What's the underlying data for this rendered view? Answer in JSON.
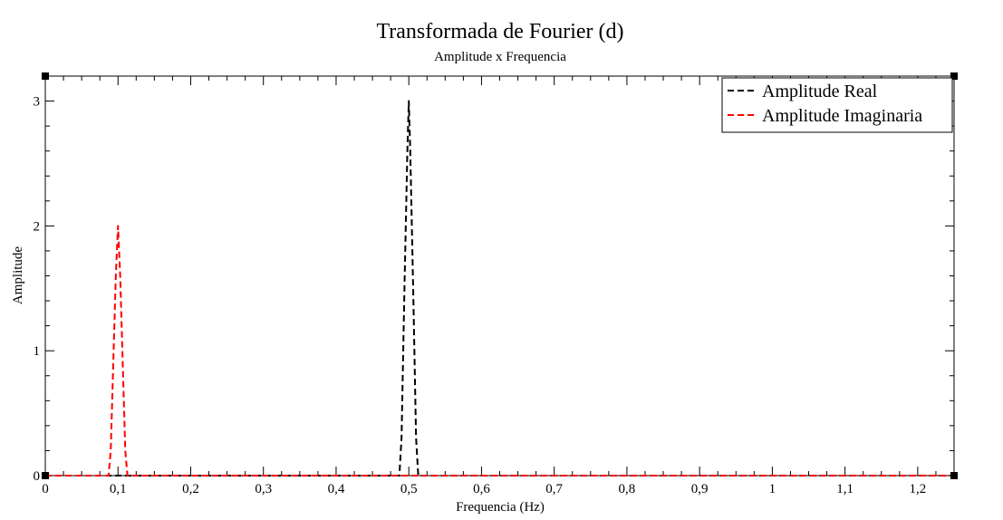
{
  "chart_data": {
    "type": "line",
    "title": "Transformada de Fourier (d)",
    "subtitle": "Amplitude x Frequencia",
    "xlabel": "Frequencia (Hz)",
    "ylabel": "Amplitude",
    "xlim": [
      0,
      1.25
    ],
    "ylim": [
      0,
      3.2
    ],
    "xticks": [
      "0",
      "0,1",
      "0,2",
      "0,3",
      "0,4",
      "0,5",
      "0,6",
      "0,7",
      "0,8",
      "0,9",
      "1",
      "1,1",
      "1,2"
    ],
    "yticks": [
      "0",
      "1",
      "2",
      "3"
    ],
    "grid": false,
    "legend_position": "top-right",
    "series": [
      {
        "name": "Amplitude Real",
        "color": "#000000",
        "line_style": "dashed",
        "x": [
          0,
          0.487,
          0.49,
          0.494,
          0.498,
          0.5,
          0.502,
          0.506,
          0.51,
          0.513,
          1.25
        ],
        "y": [
          0,
          0,
          0.3,
          1.5,
          2.6,
          3.0,
          2.6,
          1.5,
          0.3,
          0,
          0
        ]
      },
      {
        "name": "Amplitude Imaginaria",
        "color": "#ff0000",
        "line_style": "dashed",
        "x": [
          0,
          0.087,
          0.09,
          0.093,
          0.097,
          0.1,
          0.103,
          0.107,
          0.11,
          0.113,
          1.25
        ],
        "y": [
          0,
          0,
          0.2,
          0.8,
          1.6,
          2.0,
          1.6,
          0.8,
          0.2,
          0,
          0
        ]
      }
    ]
  }
}
